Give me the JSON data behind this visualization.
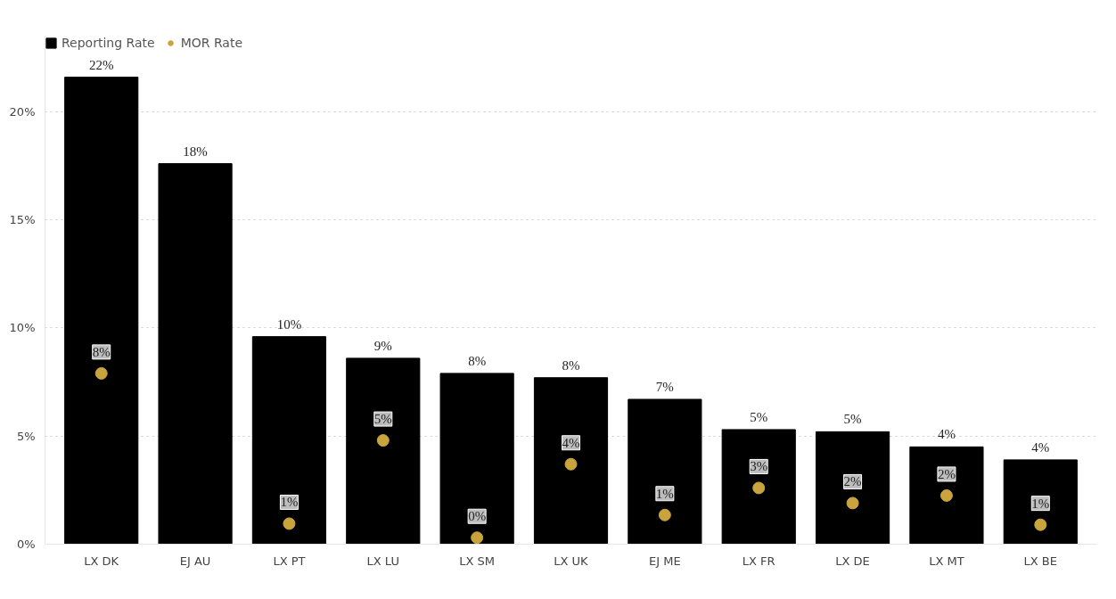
{
  "chart_data": {
    "type": "bar",
    "categories": [
      "LX DK",
      "EJ AU",
      "LX PT",
      "LX LU",
      "LX SM",
      "LX UK",
      "EJ ME",
      "LX FR",
      "LX DE",
      "LX MT",
      "LX BE"
    ],
    "series": [
      {
        "name": "Reporting Rate",
        "color": "#000000",
        "values": [
          21.6,
          17.6,
          9.6,
          8.6,
          7.9,
          7.7,
          6.7,
          5.3,
          5.2,
          4.5,
          3.9
        ],
        "value_labels": [
          "22%",
          "18%",
          "10%",
          "9%",
          "8%",
          "8%",
          "7%",
          "5%",
          "5%",
          "4%",
          "4%"
        ]
      },
      {
        "name": "MOR Rate",
        "type": "scatter",
        "color": "#c9a43c",
        "values": [
          7.9,
          null,
          0.95,
          4.8,
          0.3,
          3.7,
          1.35,
          2.6,
          1.9,
          2.25,
          0.9
        ],
        "value_labels": [
          "8%",
          null,
          "1%",
          "5%",
          "0%",
          "4%",
          "1%",
          "3%",
          "2%",
          "2%",
          "1%"
        ]
      }
    ],
    "marker": "circle",
    "ylim": [
      0,
      23.5
    ],
    "yticks": [
      {
        "value": 0,
        "label": "0%"
      },
      {
        "value": 5,
        "label": "5%"
      },
      {
        "value": 10,
        "label": "10%"
      },
      {
        "value": 15,
        "label": "15%"
      },
      {
        "value": 20,
        "label": "20%"
      }
    ],
    "grid": "y",
    "legend": "top left"
  }
}
